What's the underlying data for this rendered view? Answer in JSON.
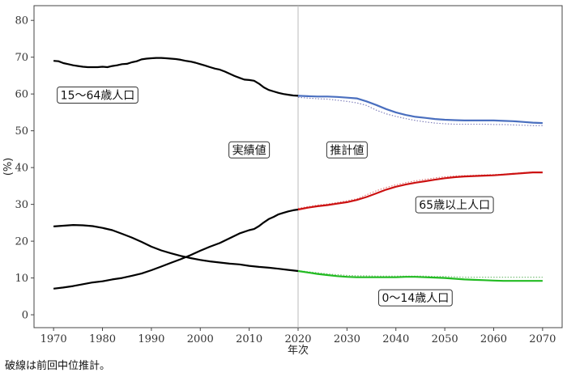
{
  "chart_data": {
    "type": "line",
    "xlabel": "年次",
    "ylabel": "(%)",
    "xlim": [
      1966,
      2074
    ],
    "ylim": [
      -3.5,
      84
    ],
    "x_ticks": [
      1970,
      1980,
      1990,
      2000,
      2010,
      2020,
      2030,
      2040,
      2050,
      2060,
      2070
    ],
    "y_ticks": [
      0,
      10,
      20,
      30,
      40,
      50,
      60,
      70,
      80
    ],
    "grid": false,
    "divider_x": 2020,
    "region_labels": [
      {
        "text": "実績値",
        "x": 2010,
        "y": 44.8
      },
      {
        "text": "推計値",
        "x": 2030,
        "y": 44.8
      }
    ],
    "series": [
      {
        "name": "15〜64歳人口",
        "label_at": {
          "x": 1979,
          "y": 59.7
        },
        "actual": {
          "color": "#000000",
          "points": [
            [
              1970,
              69.0
            ],
            [
              1971,
              68.9
            ],
            [
              1972,
              68.4
            ],
            [
              1973,
              68.1
            ],
            [
              1974,
              67.8
            ],
            [
              1975,
              67.6
            ],
            [
              1976,
              67.4
            ],
            [
              1977,
              67.3
            ],
            [
              1978,
              67.3
            ],
            [
              1979,
              67.3
            ],
            [
              1980,
              67.4
            ],
            [
              1981,
              67.3
            ],
            [
              1982,
              67.6
            ],
            [
              1983,
              67.8
            ],
            [
              1984,
              68.1
            ],
            [
              1985,
              68.2
            ],
            [
              1986,
              68.6
            ],
            [
              1987,
              68.9
            ],
            [
              1988,
              69.4
            ],
            [
              1989,
              69.6
            ],
            [
              1990,
              69.7
            ],
            [
              1991,
              69.8
            ],
            [
              1992,
              69.8
            ],
            [
              1993,
              69.7
            ],
            [
              1994,
              69.6
            ],
            [
              1995,
              69.5
            ],
            [
              1996,
              69.3
            ],
            [
              1997,
              69.0
            ],
            [
              1998,
              68.8
            ],
            [
              1999,
              68.5
            ],
            [
              2000,
              68.1
            ],
            [
              2001,
              67.7
            ],
            [
              2002,
              67.3
            ],
            [
              2003,
              66.9
            ],
            [
              2004,
              66.6
            ],
            [
              2005,
              66.1
            ],
            [
              2006,
              65.5
            ],
            [
              2007,
              64.9
            ],
            [
              2008,
              64.4
            ],
            [
              2009,
              63.9
            ],
            [
              2010,
              63.8
            ],
            [
              2011,
              63.6
            ],
            [
              2012,
              62.8
            ],
            [
              2013,
              61.8
            ],
            [
              2014,
              61.1
            ],
            [
              2015,
              60.7
            ],
            [
              2016,
              60.3
            ],
            [
              2017,
              60.0
            ],
            [
              2018,
              59.8
            ],
            [
              2019,
              59.6
            ],
            [
              2020,
              59.5
            ]
          ]
        },
        "projection": {
          "color": "#4a6fbf",
          "points": [
            [
              2020,
              59.5
            ],
            [
              2022,
              59.4
            ],
            [
              2024,
              59.3
            ],
            [
              2026,
              59.3
            ],
            [
              2028,
              59.2
            ],
            [
              2030,
              59.0
            ],
            [
              2032,
              58.8
            ],
            [
              2034,
              58.0
            ],
            [
              2036,
              57.0
            ],
            [
              2038,
              55.9
            ],
            [
              2040,
              55.0
            ],
            [
              2042,
              54.3
            ],
            [
              2044,
              53.8
            ],
            [
              2046,
              53.5
            ],
            [
              2048,
              53.2
            ],
            [
              2050,
              53.0
            ],
            [
              2052,
              52.9
            ],
            [
              2054,
              52.8
            ],
            [
              2056,
              52.8
            ],
            [
              2058,
              52.8
            ],
            [
              2060,
              52.8
            ],
            [
              2062,
              52.7
            ],
            [
              2064,
              52.6
            ],
            [
              2066,
              52.4
            ],
            [
              2068,
              52.2
            ],
            [
              2070,
              52.1
            ]
          ]
        },
        "previous": {
          "color": "#7a7ab8",
          "points": [
            [
              2020,
              59.1
            ],
            [
              2022,
              58.9
            ],
            [
              2024,
              58.7
            ],
            [
              2026,
              58.6
            ],
            [
              2028,
              58.3
            ],
            [
              2030,
              58.0
            ],
            [
              2032,
              57.6
            ],
            [
              2034,
              56.9
            ],
            [
              2036,
              55.6
            ],
            [
              2038,
              54.6
            ],
            [
              2040,
              53.9
            ],
            [
              2042,
              53.3
            ],
            [
              2044,
              52.8
            ],
            [
              2046,
              52.4
            ],
            [
              2048,
              52.1
            ],
            [
              2050,
              51.9
            ],
            [
              2052,
              51.8
            ],
            [
              2054,
              51.8
            ],
            [
              2056,
              51.8
            ],
            [
              2058,
              51.8
            ],
            [
              2060,
              51.7
            ],
            [
              2062,
              51.7
            ],
            [
              2064,
              51.6
            ],
            [
              2066,
              51.5
            ],
            [
              2068,
              51.4
            ],
            [
              2070,
              51.4
            ]
          ]
        }
      },
      {
        "name": "65歳以上人口",
        "label_at": {
          "x": 2052,
          "y": 29.9
        },
        "actual": {
          "color": "#000000",
          "points": [
            [
              1970,
              7.1
            ],
            [
              1972,
              7.4
            ],
            [
              1974,
              7.8
            ],
            [
              1976,
              8.3
            ],
            [
              1978,
              8.8
            ],
            [
              1980,
              9.1
            ],
            [
              1982,
              9.6
            ],
            [
              1984,
              10.0
            ],
            [
              1986,
              10.6
            ],
            [
              1988,
              11.2
            ],
            [
              1990,
              12.1
            ],
            [
              1992,
              13.1
            ],
            [
              1994,
              14.1
            ],
            [
              1996,
              15.1
            ],
            [
              1998,
              16.2
            ],
            [
              2000,
              17.4
            ],
            [
              2002,
              18.5
            ],
            [
              2004,
              19.5
            ],
            [
              2006,
              20.8
            ],
            [
              2008,
              22.1
            ],
            [
              2010,
              23.0
            ],
            [
              2011,
              23.3
            ],
            [
              2012,
              24.1
            ],
            [
              2013,
              25.1
            ],
            [
              2014,
              26.0
            ],
            [
              2015,
              26.6
            ],
            [
              2016,
              27.3
            ],
            [
              2017,
              27.7
            ],
            [
              2018,
              28.1
            ],
            [
              2019,
              28.4
            ],
            [
              2020,
              28.6
            ]
          ]
        },
        "projection": {
          "color": "#cc1111",
          "points": [
            [
              2020,
              28.6
            ],
            [
              2022,
              29.1
            ],
            [
              2024,
              29.5
            ],
            [
              2026,
              29.8
            ],
            [
              2028,
              30.2
            ],
            [
              2030,
              30.6
            ],
            [
              2032,
              31.2
            ],
            [
              2034,
              32.0
            ],
            [
              2036,
              33.0
            ],
            [
              2038,
              34.0
            ],
            [
              2040,
              34.8
            ],
            [
              2042,
              35.4
            ],
            [
              2044,
              35.9
            ],
            [
              2046,
              36.3
            ],
            [
              2048,
              36.7
            ],
            [
              2050,
              37.1
            ],
            [
              2052,
              37.4
            ],
            [
              2054,
              37.6
            ],
            [
              2056,
              37.7
            ],
            [
              2058,
              37.8
            ],
            [
              2060,
              37.9
            ],
            [
              2062,
              38.1
            ],
            [
              2064,
              38.3
            ],
            [
              2066,
              38.5
            ],
            [
              2068,
              38.7
            ],
            [
              2070,
              38.7
            ]
          ]
        },
        "previous": {
          "color": "#e07070",
          "points": [
            [
              2020,
              28.9
            ],
            [
              2022,
              29.4
            ],
            [
              2024,
              29.8
            ],
            [
              2026,
              30.1
            ],
            [
              2028,
              30.5
            ],
            [
              2030,
              31.0
            ],
            [
              2032,
              31.5
            ],
            [
              2034,
              32.6
            ],
            [
              2036,
              33.7
            ],
            [
              2038,
              34.6
            ],
            [
              2040,
              35.3
            ],
            [
              2042,
              35.9
            ],
            [
              2044,
              36.4
            ],
            [
              2046,
              36.8
            ],
            [
              2048,
              37.2
            ],
            [
              2050,
              37.5
            ],
            [
              2052,
              37.7
            ],
            [
              2054,
              37.8
            ],
            [
              2056,
              37.9
            ],
            [
              2058,
              38.0
            ],
            [
              2060,
              38.1
            ],
            [
              2062,
              38.2
            ],
            [
              2064,
              38.4
            ],
            [
              2066,
              38.6
            ],
            [
              2068,
              38.8
            ],
            [
              2070,
              38.8
            ]
          ]
        }
      },
      {
        "name": "0〜14歳人口",
        "label_at": {
          "x": 2044,
          "y": 4.6
        },
        "actual": {
          "color": "#000000",
          "points": [
            [
              1970,
              24.0
            ],
            [
              1972,
              24.2
            ],
            [
              1974,
              24.4
            ],
            [
              1976,
              24.3
            ],
            [
              1978,
              24.1
            ],
            [
              1980,
              23.6
            ],
            [
              1982,
              23.0
            ],
            [
              1984,
              22.0
            ],
            [
              1986,
              21.0
            ],
            [
              1988,
              19.8
            ],
            [
              1990,
              18.5
            ],
            [
              1992,
              17.5
            ],
            [
              1994,
              16.7
            ],
            [
              1996,
              16.0
            ],
            [
              1998,
              15.4
            ],
            [
              2000,
              14.9
            ],
            [
              2002,
              14.5
            ],
            [
              2004,
              14.2
            ],
            [
              2006,
              13.9
            ],
            [
              2008,
              13.7
            ],
            [
              2010,
              13.3
            ],
            [
              2012,
              13.0
            ],
            [
              2014,
              12.8
            ],
            [
              2016,
              12.5
            ],
            [
              2018,
              12.2
            ],
            [
              2020,
              11.9
            ]
          ]
        },
        "projection": {
          "color": "#22bb22",
          "points": [
            [
              2020,
              11.9
            ],
            [
              2022,
              11.5
            ],
            [
              2024,
              11.1
            ],
            [
              2026,
              10.8
            ],
            [
              2028,
              10.5
            ],
            [
              2030,
              10.3
            ],
            [
              2032,
              10.2
            ],
            [
              2034,
              10.2
            ],
            [
              2036,
              10.2
            ],
            [
              2038,
              10.2
            ],
            [
              2040,
              10.2
            ],
            [
              2042,
              10.3
            ],
            [
              2044,
              10.3
            ],
            [
              2046,
              10.2
            ],
            [
              2048,
              10.1
            ],
            [
              2050,
              10.0
            ],
            [
              2052,
              9.8
            ],
            [
              2054,
              9.6
            ],
            [
              2056,
              9.5
            ],
            [
              2058,
              9.4
            ],
            [
              2060,
              9.3
            ],
            [
              2062,
              9.2
            ],
            [
              2064,
              9.2
            ],
            [
              2066,
              9.2
            ],
            [
              2068,
              9.2
            ],
            [
              2070,
              9.2
            ]
          ]
        },
        "previous": {
          "color": "#6ab86a",
          "points": [
            [
              2020,
              12.0
            ],
            [
              2022,
              11.7
            ],
            [
              2024,
              11.4
            ],
            [
              2026,
              11.1
            ],
            [
              2028,
              10.9
            ],
            [
              2030,
              10.7
            ],
            [
              2032,
              10.6
            ],
            [
              2034,
              10.6
            ],
            [
              2036,
              10.5
            ],
            [
              2038,
              10.5
            ],
            [
              2040,
              10.5
            ],
            [
              2042,
              10.5
            ],
            [
              2044,
              10.5
            ],
            [
              2046,
              10.5
            ],
            [
              2048,
              10.4
            ],
            [
              2050,
              10.4
            ],
            [
              2052,
              10.3
            ],
            [
              2054,
              10.2
            ],
            [
              2056,
              10.2
            ],
            [
              2058,
              10.2
            ],
            [
              2060,
              10.2
            ],
            [
              2062,
              10.2
            ],
            [
              2064,
              10.2
            ],
            [
              2066,
              10.2
            ],
            [
              2068,
              10.2
            ],
            [
              2070,
              10.2
            ]
          ]
        }
      }
    ]
  },
  "note": "破線は前回中位推計。"
}
